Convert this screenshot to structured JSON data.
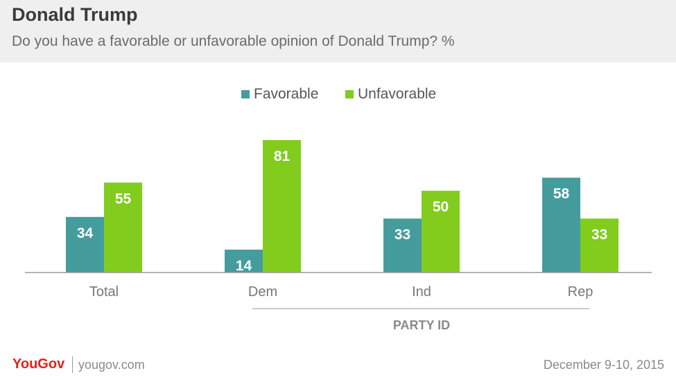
{
  "header": {
    "title": "Donald Trump",
    "subtitle": "Do you have a favorable or unfavorable opinion of Donald Trump? %"
  },
  "chart_data": {
    "type": "bar",
    "categories": [
      "Total",
      "Dem",
      "Ind",
      "Rep"
    ],
    "series": [
      {
        "name": "Favorable",
        "color": "#459c9d",
        "values": [
          34,
          14,
          33,
          58
        ]
      },
      {
        "name": "Unfavorable",
        "color": "#81cc1d",
        "values": [
          55,
          81,
          50,
          33
        ]
      }
    ],
    "group_label": "PARTY ID",
    "group_categories": [
      "Dem",
      "Ind",
      "Rep"
    ],
    "ylim": [
      0,
      81
    ],
    "legend_position": "top-center",
    "grid": false
  },
  "footer": {
    "brand": "YouGov",
    "site": "yougov.com",
    "date": "December 9-10, 2015"
  }
}
